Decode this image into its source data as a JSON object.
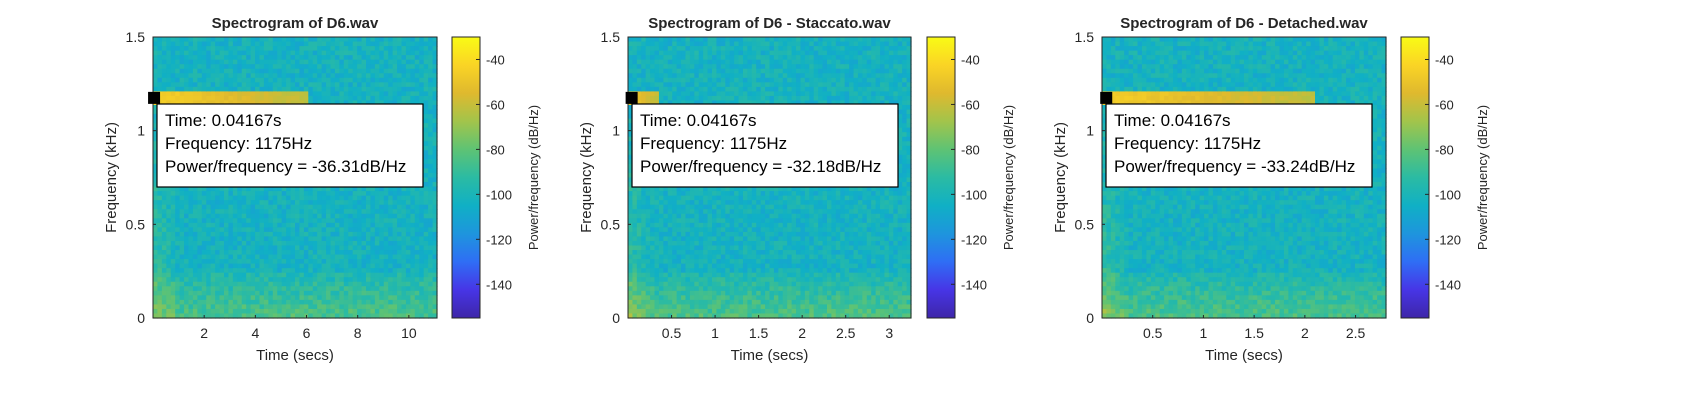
{
  "chart_data": [
    {
      "type": "heatmap",
      "title": "Spectrogram of D6.wav",
      "xlabel": "Time (secs)",
      "ylabel": "Frequency (kHz)",
      "xlim": [
        0,
        11.1
      ],
      "ylim": [
        0,
        1.5
      ],
      "x_ticks": [
        "2",
        "4",
        "6",
        "8",
        "10"
      ],
      "y_ticks": [
        "0",
        "0.5",
        "1",
        "1.5"
      ],
      "colorbar": {
        "label": "Power/frequency (dB/Hz)",
        "ticks": [
          "-40",
          "-60",
          "-80",
          "-100",
          "-120",
          "-140"
        ],
        "range": [
          -155,
          -30
        ]
      },
      "harmonic": {
        "frequency_khz": 1.175,
        "t_end": 6.0
      },
      "datatip": {
        "time": 0.04167,
        "frequency": 1175,
        "power": -36.31,
        "lines": [
          "Time: 0.04167s",
          "Frequency: 1175Hz",
          "Power/frequency = -36.31dB/Hz"
        ]
      }
    },
    {
      "type": "heatmap",
      "title": "Spectrogram of D6 - Staccato.wav",
      "xlabel": "Time (secs)",
      "ylabel": "Frequency (kHz)",
      "xlim": [
        0,
        3.25
      ],
      "ylim": [
        0,
        1.5
      ],
      "x_ticks": [
        "0.5",
        "1",
        "1.5",
        "2",
        "2.5",
        "3"
      ],
      "y_ticks": [
        "0",
        "0.5",
        "1",
        "1.5"
      ],
      "colorbar": {
        "label": "Power/frequency (dB/Hz)",
        "ticks": [
          "-40",
          "-60",
          "-80",
          "-100",
          "-120",
          "-140"
        ],
        "range": [
          -155,
          -30
        ]
      },
      "harmonic": {
        "frequency_khz": 1.175,
        "t_end": 0.35
      },
      "datatip": {
        "time": 0.04167,
        "frequency": 1175,
        "power": -32.18,
        "lines": [
          "Time: 0.04167s",
          "Frequency: 1175Hz",
          "Power/frequency = -32.18dB/Hz"
        ]
      }
    },
    {
      "type": "heatmap",
      "title": "Spectrogram of D6 - Detached.wav",
      "xlabel": "Time (secs)",
      "ylabel": "Frequency (kHz)",
      "xlim": [
        0,
        2.8
      ],
      "ylim": [
        0,
        1.5
      ],
      "x_ticks": [
        "0.5",
        "1",
        "1.5",
        "2",
        "2.5"
      ],
      "y_ticks": [
        "0",
        "0.5",
        "1",
        "1.5"
      ],
      "colorbar": {
        "label": "Power/frequency (dB/Hz)",
        "ticks": [
          "-40",
          "-60",
          "-80",
          "-100",
          "-120",
          "-140"
        ],
        "range": [
          -155,
          -30
        ]
      },
      "harmonic": {
        "frequency_khz": 1.175,
        "t_end": 2.1
      },
      "datatip": {
        "time": 0.04167,
        "frequency": 1175,
        "power": -33.24,
        "lines": [
          "Time: 0.04167s",
          "Frequency: 1175Hz",
          "Power/frequency = -33.24dB/Hz"
        ]
      }
    }
  ],
  "colors": {
    "colormap": [
      "#3e26a8",
      "#4735e6",
      "#2f6ef5",
      "#1e95dd",
      "#10b0c5",
      "#2bbba3",
      "#5ec374",
      "#a2c44b",
      "#dfb92e",
      "#fad425",
      "#f9fb15"
    ],
    "axis": "#262626"
  }
}
